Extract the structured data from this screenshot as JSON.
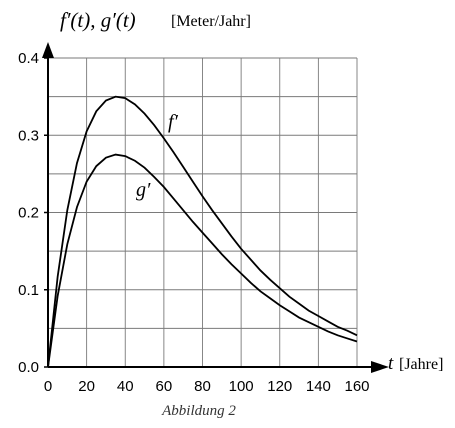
{
  "chart_data": {
    "type": "line",
    "title": "",
    "ylabel": "f′(t), g′(t)",
    "ylabel_unit": "[Meter/Jahr]",
    "xlabel": "t",
    "xlabel_unit": "[Jahre]",
    "caption": "Abbildung 2",
    "xlim": [
      0,
      160
    ],
    "ylim": [
      0,
      0.4
    ],
    "x_ticks": [
      "0",
      "20",
      "40",
      "60",
      "80",
      "100",
      "120",
      "140",
      "160"
    ],
    "y_ticks": [
      "0.0",
      "0.1",
      "0.2",
      "0.3",
      "0.4"
    ],
    "x_grid_step": 20,
    "y_grid_step": 0.05,
    "grid": true,
    "series": [
      {
        "name": "f′",
        "x": [
          0,
          5,
          10,
          15,
          20,
          25,
          30,
          35,
          40,
          45,
          50,
          55,
          60,
          65,
          70,
          75,
          80,
          85,
          90,
          95,
          100,
          105,
          110,
          115,
          120,
          125,
          130,
          135,
          140,
          145,
          150,
          155,
          160
        ],
        "values": [
          0,
          0.117,
          0.203,
          0.264,
          0.305,
          0.331,
          0.345,
          0.35,
          0.348,
          0.34,
          0.328,
          0.313,
          0.296,
          0.278,
          0.259,
          0.24,
          0.221,
          0.203,
          0.186,
          0.169,
          0.153,
          0.139,
          0.125,
          0.113,
          0.102,
          0.091,
          0.082,
          0.073,
          0.066,
          0.059,
          0.052,
          0.047,
          0.041
        ]
      },
      {
        "name": "g′",
        "x": [
          0,
          5,
          10,
          15,
          20,
          25,
          30,
          35,
          40,
          45,
          50,
          55,
          60,
          65,
          70,
          75,
          80,
          85,
          90,
          95,
          100,
          105,
          110,
          115,
          120,
          125,
          130,
          135,
          140,
          145,
          150,
          155,
          160
        ],
        "values": [
          0,
          0.092,
          0.159,
          0.207,
          0.24,
          0.26,
          0.271,
          0.275,
          0.273,
          0.267,
          0.258,
          0.246,
          0.233,
          0.218,
          0.203,
          0.188,
          0.174,
          0.16,
          0.146,
          0.133,
          0.121,
          0.109,
          0.098,
          0.089,
          0.08,
          0.072,
          0.064,
          0.058,
          0.052,
          0.046,
          0.041,
          0.037,
          0.033
        ]
      }
    ]
  }
}
